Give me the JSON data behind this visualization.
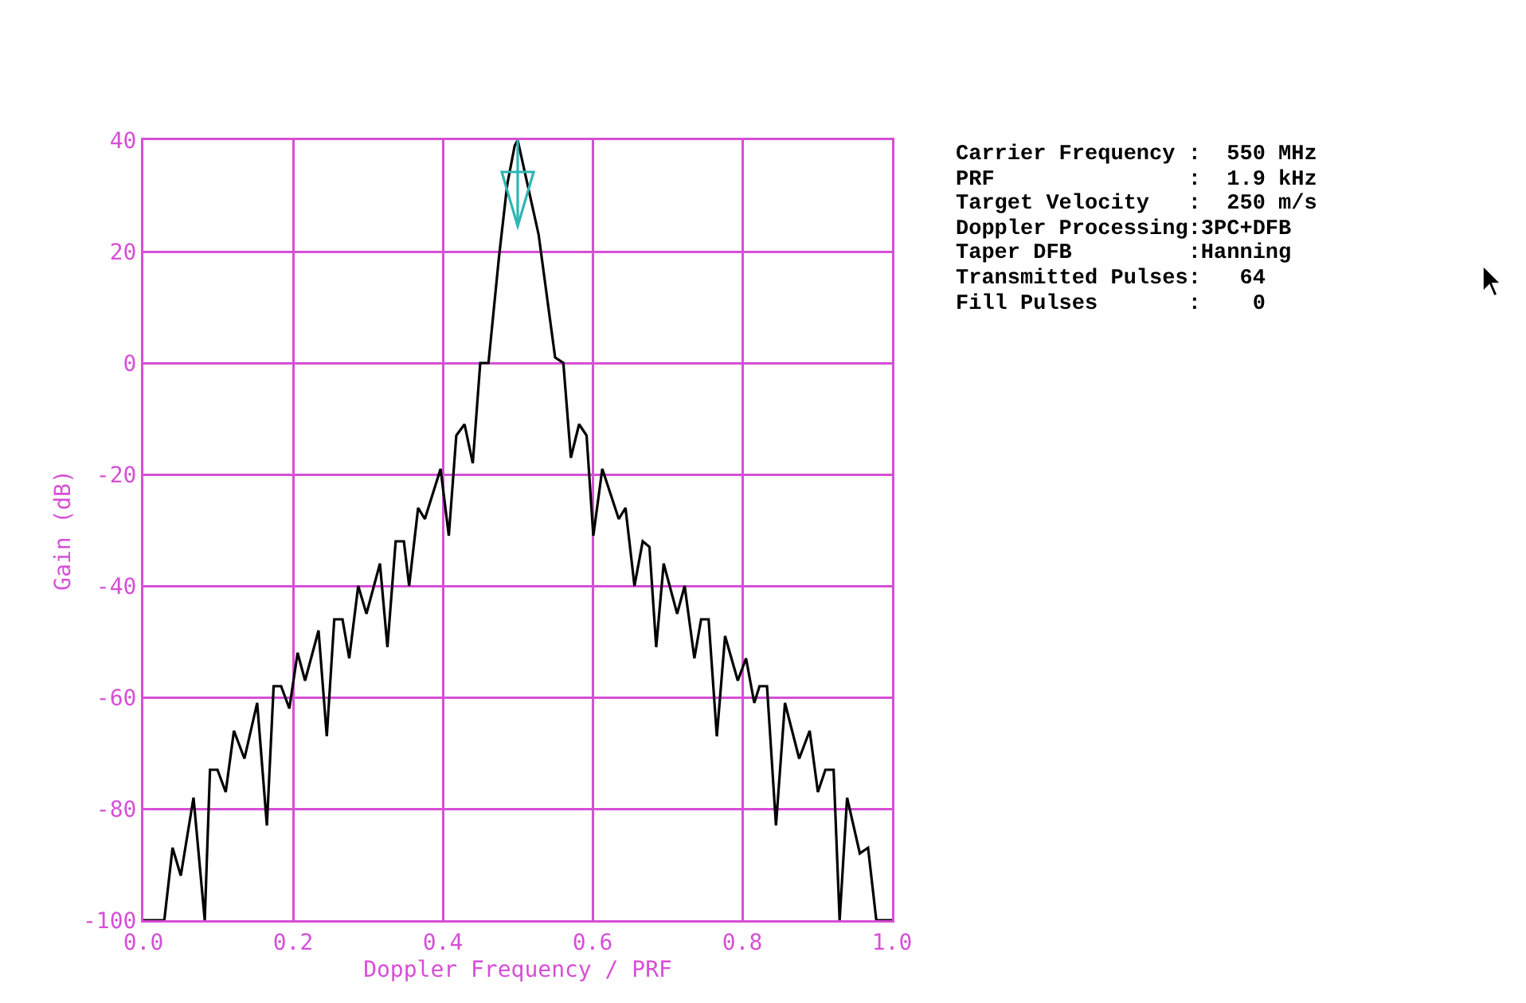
{
  "chart_data": {
    "type": "line",
    "xlabel": "Doppler Frequency / PRF",
    "ylabel": "Gain (dB)",
    "x": [
      0,
      0.028,
      0.039,
      0.05,
      0.067,
      0.082,
      0.089,
      0.099,
      0.11,
      0.121,
      0.135,
      0.152,
      0.165,
      0.174,
      0.184,
      0.195,
      0.206,
      0.216,
      0.234,
      0.245,
      0.255,
      0.266,
      0.275,
      0.287,
      0.298,
      0.316,
      0.326,
      0.337,
      0.348,
      0.355,
      0.367,
      0.376,
      0.397,
      0.408,
      0.418,
      0.429,
      0.44,
      0.45,
      0.461,
      0.475,
      0.486,
      0.496,
      0.5,
      0.528,
      0.55,
      0.561,
      0.571,
      0.582,
      0.592,
      0.601,
      0.613,
      0.635,
      0.644,
      0.656,
      0.667,
      0.676,
      0.685,
      0.695,
      0.713,
      0.723,
      0.736,
      0.745,
      0.755,
      0.766,
      0.777,
      0.794,
      0.805,
      0.816,
      0.823,
      0.833,
      0.845,
      0.857,
      0.876,
      0.89,
      0.901,
      0.911,
      0.922,
      0.93,
      0.94,
      0.957,
      0.968,
      0.979,
      1.0
    ],
    "series": [
      {
        "color": "#000000",
        "values": [
          -100,
          -100,
          -87,
          -92,
          -78,
          -100,
          -73,
          -73,
          -77,
          -66,
          -71,
          -61,
          -83,
          -58,
          -58,
          -62,
          -52,
          -57,
          -48,
          -67,
          -46,
          -46,
          -53,
          -40,
          -45,
          -36,
          -51,
          -32,
          -32,
          -40,
          -26,
          -28,
          -19,
          -31,
          -13,
          -11,
          -18,
          0,
          0,
          19,
          32,
          39,
          40,
          23,
          1,
          0,
          -17,
          -11,
          -13,
          -31,
          -19,
          -28,
          -26,
          -40,
          -32,
          -33,
          -51,
          -36,
          -45,
          -40,
          -53,
          -46,
          -46,
          -67,
          -49,
          -57,
          -53,
          -61,
          -58,
          -58,
          -83,
          -61,
          -71,
          -66,
          -77,
          -73,
          -73,
          -100,
          -78,
          -88,
          -87,
          -100,
          -100
        ]
      }
    ],
    "xlim": [
      0,
      1
    ],
    "ylim": [
      -100,
      40
    ],
    "xticks": [
      {
        "value": 0,
        "label": "0.0"
      },
      {
        "value": 0.2,
        "label": "0.2"
      },
      {
        "value": 0.4,
        "label": "0.4"
      },
      {
        "value": 0.6,
        "label": "0.6"
      },
      {
        "value": 0.8,
        "label": "0.8"
      },
      {
        "value": 1,
        "label": "1.0"
      }
    ],
    "yticks": [
      -100,
      -80,
      -60,
      -40,
      -20,
      0,
      20,
      40
    ],
    "grid": true,
    "legend": false,
    "marker": "none",
    "line_style": "solid",
    "annotations": [
      "Carrier Frequency :  550 MHz",
      "PRF               :  1.9 kHz",
      "Target Velocity   :  250 m/s",
      "Doppler Processing:3PC+DFB",
      "Taper DFB         :Hanning",
      "Transmitted Pulses:   64",
      "Fill Pulses       :    0"
    ]
  }
}
